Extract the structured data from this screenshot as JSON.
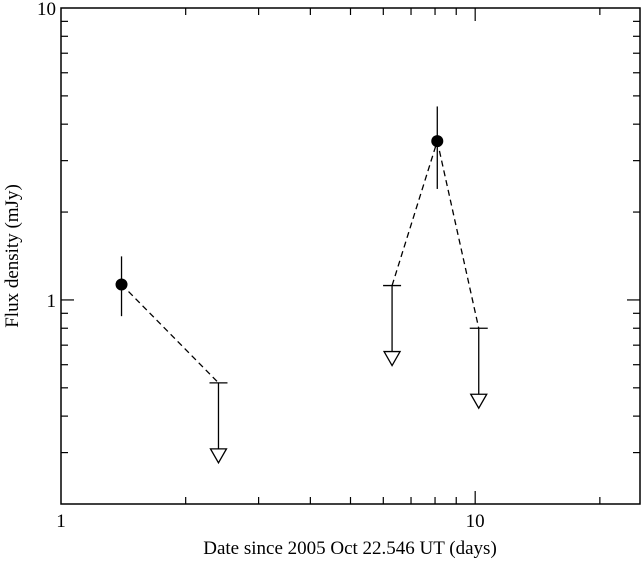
{
  "chart_data": {
    "type": "scatter",
    "title": "",
    "xlabel": "Date since 2005 Oct 22.546 UT (days)",
    "ylabel": "Flux density (mJy)",
    "xscale": "log",
    "yscale": "log",
    "xlim": [
      1,
      25
    ],
    "ylim": [
      0.2,
      10
    ],
    "xtick_labels": [
      {
        "value": 1,
        "label": "1"
      },
      {
        "value": 10,
        "label": "10"
      }
    ],
    "ytick_labels": [
      {
        "value": 1,
        "label": "1"
      },
      {
        "value": 10,
        "label": "10"
      }
    ],
    "grid": false,
    "legend": "none",
    "detections": [
      {
        "x": 1.4,
        "y": 1.13,
        "yerr_low": 0.25,
        "yerr_high": 0.28
      },
      {
        "x": 8.1,
        "y": 3.5,
        "yerr_low": 1.1,
        "yerr_high": 1.1
      }
    ],
    "upper_limits": [
      {
        "x": 2.4,
        "y": 0.52
      },
      {
        "x": 6.3,
        "y": 1.12
      },
      {
        "x": 10.2,
        "y": 0.8
      }
    ],
    "dashed_connectors": [
      [
        [
          1.4,
          1.13
        ],
        [
          2.4,
          0.52
        ]
      ],
      [
        [
          6.3,
          1.12
        ],
        [
          8.1,
          3.5
        ]
      ],
      [
        [
          8.1,
          3.5
        ],
        [
          10.2,
          0.8
        ]
      ]
    ],
    "colors": {
      "axis": "#000000",
      "marker": "#000000",
      "background": "#ffffff"
    }
  }
}
